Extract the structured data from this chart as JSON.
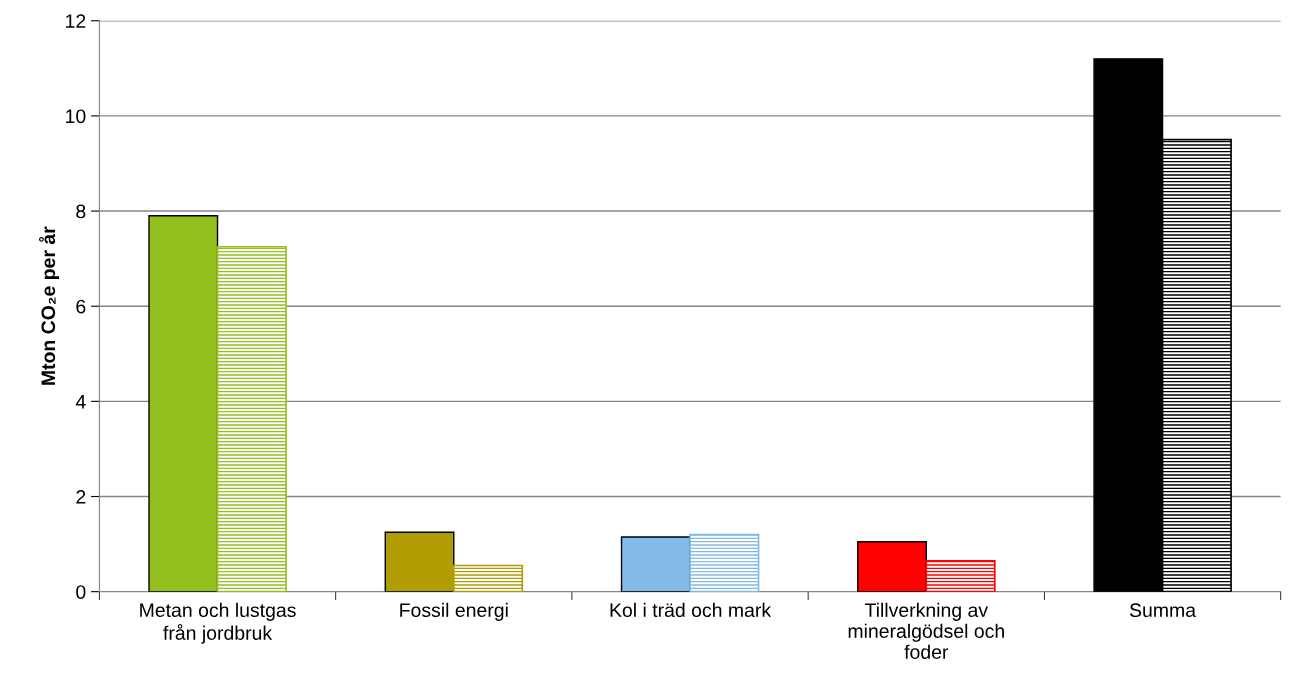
{
  "chart_data": {
    "type": "bar",
    "ylabel": "Mton CO₂e per år",
    "categories": [
      "Metan och lustgas från jordbruk",
      "Fossil energi",
      "Kol i träd och mark",
      "Tillverkning av mineralgödsel och foder",
      "Summa"
    ],
    "series": [
      {
        "colors": [
          "#93c01f",
          "#b19c03",
          "#83bbe8",
          "#ff0000",
          "#000000"
        ],
        "values": [
          7.9,
          1.25,
          1.15,
          1.05,
          11.2
        ]
      },
      {
        "colors": [
          "#93c01f",
          "#b19c03",
          "#83bbe8",
          "#ff0000",
          "#000000"
        ],
        "values": [
          7.25,
          0.55,
          1.2,
          0.65,
          9.5
        ]
      }
    ],
    "ylim": [
      0,
      12
    ],
    "yticks": [
      0,
      2,
      4,
      6,
      8,
      10,
      12
    ],
    "grid": "y",
    "legend": false
  }
}
